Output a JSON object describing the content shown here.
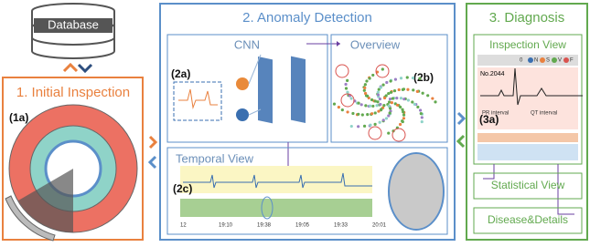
{
  "database": {
    "label": "Database"
  },
  "initial_inspection": {
    "title": "1. Initial Inspection",
    "tag": "(1a)"
  },
  "anomaly_detection": {
    "title": "2. Anomaly Detection",
    "cnn": {
      "title": "CNN",
      "tag": "(2a)"
    },
    "overview": {
      "title": "Overview",
      "tag": "(2b)"
    },
    "temporal_view": {
      "title": "Temporal View",
      "tag": "(2c)",
      "time_labels": [
        "12",
        "19:10",
        "19:38",
        "19:05",
        "19:33",
        "20:01"
      ]
    }
  },
  "diagnosis": {
    "title": "3. Diagnosis",
    "inspection_view": {
      "title": "Inspection View",
      "tag": "(3a)",
      "record": "No.2044",
      "legend": [
        "N",
        "S",
        "V",
        "F"
      ],
      "slider_value": "0",
      "intervals": [
        "PR interval",
        "QT interval"
      ]
    },
    "statistical_view": "Statistical View",
    "disease_details": "Disease&Details"
  }
}
